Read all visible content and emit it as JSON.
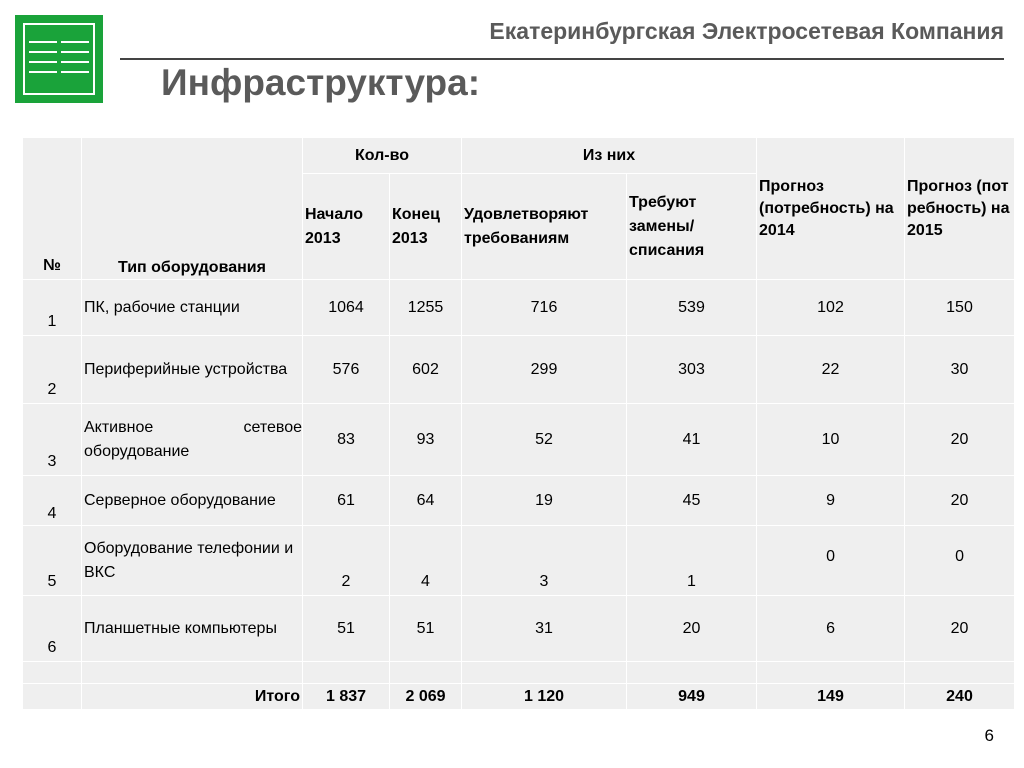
{
  "header": {
    "company": "Екатеринбургская Электросетевая Компания",
    "title": "Инфраструктура:",
    "brand_color": "#1aa33a"
  },
  "table": {
    "col_number": "№",
    "col_type": "Тип оборудования",
    "group_qty": "Кол-во",
    "group_of_them": "Из них",
    "col_start": "Начало 2013",
    "col_end": "Конец 2013",
    "col_satisfy": "Удовлетворяют требованиям",
    "col_replace": "Требуют замены/ списания",
    "col_forecast_2014": "Прогноз (потребность) на 2014",
    "col_forecast_2015": "Прогноз (потребность) на 2015",
    "rows": [
      {
        "num": "1",
        "type": "ПК, рабочие станции",
        "start": "1064",
        "end": "1255",
        "satisfy": "716",
        "replace": "539",
        "f2014": "102",
        "f2015": "150"
      },
      {
        "num": "2",
        "type": "Периферийные устройства",
        "start": "576",
        "end": "602",
        "satisfy": "299",
        "replace": "303",
        "f2014": "22",
        "f2015": "30"
      },
      {
        "num": "3",
        "type": "Активное сетевое оборудование",
        "start": "83",
        "end": "93",
        "satisfy": "52",
        "replace": "41",
        "f2014": "10",
        "f2015": "20"
      },
      {
        "num": "4",
        "type": "Серверное оборудование",
        "start": "61",
        "end": "64",
        "satisfy": "19",
        "replace": "45",
        "f2014": "9",
        "f2015": "20"
      },
      {
        "num": "5",
        "type": "Оборудование телефонии и ВКС",
        "start": "2",
        "end": "4",
        "satisfy": "3",
        "replace": "1",
        "f2014": "0",
        "f2015": "0"
      },
      {
        "num": "6",
        "type": "Планшетные компьютеры",
        "start": "51",
        "end": "51",
        "satisfy": "31",
        "replace": "20",
        "f2014": "6",
        "f2015": "20"
      }
    ],
    "total": {
      "label": "Итого",
      "start": "1 837",
      "end": "2 069",
      "satisfy": "1 120",
      "replace": "949",
      "f2014": "149",
      "f2015": "240"
    }
  },
  "page_number": "6"
}
